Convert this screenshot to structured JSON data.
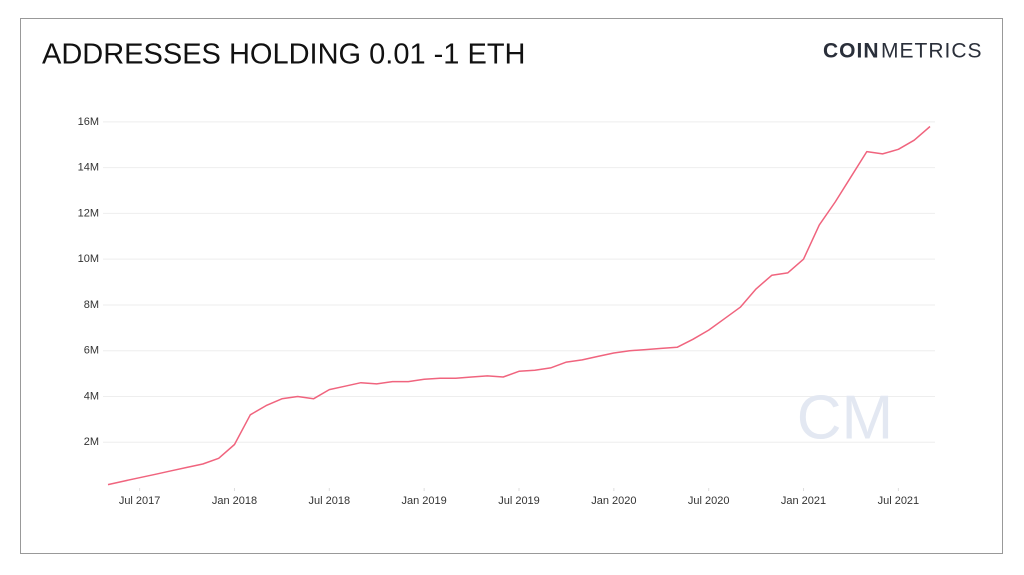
{
  "chart_data": {
    "type": "line",
    "title": "ADDRESSES HOLDING 0.01 -1 ETH",
    "logo_bold": "COIN",
    "logo_light": "METRICS",
    "watermark": "CM",
    "x": [
      "2017-05",
      "2017-06",
      "2017-07",
      "2017-08",
      "2017-09",
      "2017-10",
      "2017-11",
      "2017-12",
      "2018-01",
      "2018-02",
      "2018-03",
      "2018-04",
      "2018-05",
      "2018-06",
      "2018-07",
      "2018-08",
      "2018-09",
      "2018-10",
      "2018-11",
      "2018-12",
      "2019-01",
      "2019-02",
      "2019-03",
      "2019-04",
      "2019-05",
      "2019-06",
      "2019-07",
      "2019-08",
      "2019-09",
      "2019-10",
      "2019-11",
      "2019-12",
      "2020-01",
      "2020-02",
      "2020-03",
      "2020-04",
      "2020-05",
      "2020-06",
      "2020-07",
      "2020-08",
      "2020-09",
      "2020-10",
      "2020-11",
      "2020-12",
      "2021-01",
      "2021-02",
      "2021-03",
      "2021-04",
      "2021-05",
      "2021-06",
      "2021-07",
      "2021-08",
      "2021-09"
    ],
    "series": [
      {
        "name": "Addresses holding 0.01-1 ETH",
        "color": "#f0647e",
        "values": [
          150000,
          300000,
          450000,
          600000,
          750000,
          900000,
          1050000,
          1300000,
          1900000,
          3200000,
          3600000,
          3900000,
          4000000,
          3900000,
          4300000,
          4450000,
          4600000,
          4550000,
          4650000,
          4650000,
          4750000,
          4800000,
          4800000,
          4850000,
          4900000,
          4850000,
          5100000,
          5150000,
          5250000,
          5500000,
          5600000,
          5750000,
          5900000,
          6000000,
          6050000,
          6100000,
          6150000,
          6500000,
          6900000,
          7400000,
          7900000,
          8700000,
          9300000,
          9400000,
          10000000,
          11500000,
          12500000,
          13600000,
          14700000,
          14600000,
          14800000,
          15200000,
          15800000
        ]
      }
    ],
    "xlim": [
      "2017-05",
      "2021-09"
    ],
    "xticks": [
      {
        "value": "2017-07",
        "label": "Jul 2017"
      },
      {
        "value": "2018-01",
        "label": "Jan 2018"
      },
      {
        "value": "2018-07",
        "label": "Jul 2018"
      },
      {
        "value": "2019-01",
        "label": "Jan 2019"
      },
      {
        "value": "2019-07",
        "label": "Jul 2019"
      },
      {
        "value": "2020-01",
        "label": "Jan 2020"
      },
      {
        "value": "2020-07",
        "label": "Jul 2020"
      },
      {
        "value": "2021-01",
        "label": "Jan 2021"
      },
      {
        "value": "2021-07",
        "label": "Jul 2021"
      }
    ],
    "ylim": [
      0,
      17000000
    ],
    "yticks": [
      {
        "value": 2000000,
        "label": "2M"
      },
      {
        "value": 4000000,
        "label": "4M"
      },
      {
        "value": 6000000,
        "label": "6M"
      },
      {
        "value": 8000000,
        "label": "8M"
      },
      {
        "value": 10000000,
        "label": "10M"
      },
      {
        "value": 12000000,
        "label": "12M"
      },
      {
        "value": 14000000,
        "label": "14M"
      },
      {
        "value": 16000000,
        "label": "16M"
      }
    ],
    "grid": true
  }
}
